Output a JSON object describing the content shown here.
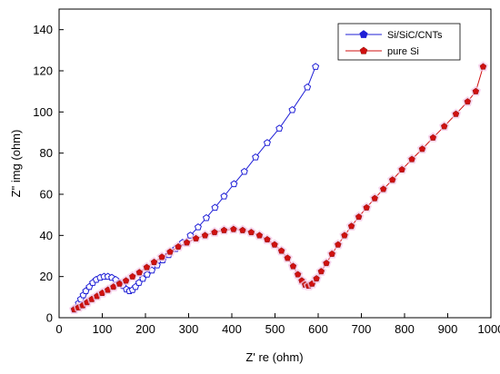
{
  "chart_data": {
    "type": "line",
    "xlabel": "Z' re (ohm)",
    "ylabel": "Z\" img (ohm)",
    "xlim": [
      0,
      1000
    ],
    "ylim": [
      0,
      150
    ],
    "xticks": [
      0,
      100,
      200,
      300,
      400,
      500,
      600,
      700,
      800,
      900,
      1000
    ],
    "yticks": [
      0,
      20,
      40,
      60,
      80,
      100,
      120,
      140
    ],
    "grid": false,
    "legend_position": "top-right",
    "series": [
      {
        "name": "Si/SiC/CNTs",
        "color": "#1f1fd6",
        "marker": "pentagon-open",
        "x": [
          35,
          40,
          45,
          50,
          56,
          62,
          70,
          78,
          86,
          95,
          104,
          113,
          122,
          131,
          140,
          148,
          156,
          163,
          170,
          177,
          185,
          194,
          204,
          215,
          227,
          240,
          254,
          270,
          286,
          304,
          322,
          341,
          361,
          382,
          405,
          429,
          455,
          482,
          510,
          540,
          575,
          594
        ],
        "y": [
          4,
          5,
          7,
          9,
          11,
          13,
          15,
          17,
          18.5,
          19.5,
          20,
          20,
          19.5,
          18.5,
          17,
          15.5,
          13.8,
          13,
          13.5,
          15,
          17,
          19,
          21,
          23,
          25.5,
          28,
          30.5,
          33.5,
          36.5,
          40,
          44,
          48.5,
          53.5,
          59,
          65,
          71,
          78,
          85,
          92,
          101,
          112,
          122
        ]
      },
      {
        "name": "pure Si",
        "color": "#d01010",
        "marker": "pentagon-filled",
        "x": [
          35,
          45,
          55,
          65,
          76,
          88,
          100,
          113,
          126,
          140,
          155,
          170,
          186,
          203,
          220,
          238,
          257,
          276,
          296,
          317,
          338,
          360,
          382,
          404,
          425,
          445,
          464,
          482,
          499,
          515,
          529,
          542,
          553,
          562,
          570,
          578,
          586,
          596,
          607,
          619,
          632,
          646,
          661,
          677,
          694,
          712,
          731,
          751,
          772,
          794,
          817,
          841,
          866,
          892,
          919,
          946,
          965,
          982
        ],
        "y": [
          4,
          5,
          6,
          7.5,
          9,
          10.5,
          12,
          13.5,
          15,
          16.5,
          18,
          20,
          22,
          24.5,
          27,
          29.5,
          32,
          34.5,
          36.5,
          38.5,
          40,
          41.5,
          42.5,
          43,
          42.5,
          41.5,
          40,
          38,
          35.5,
          32.5,
          29,
          25,
          21,
          18,
          16,
          15.5,
          16.5,
          19,
          22.5,
          26.5,
          31,
          35.5,
          40,
          44.5,
          49,
          53.5,
          58,
          62.5,
          67,
          72,
          77,
          82,
          87.5,
          93,
          99,
          105,
          110,
          122
        ]
      }
    ]
  }
}
